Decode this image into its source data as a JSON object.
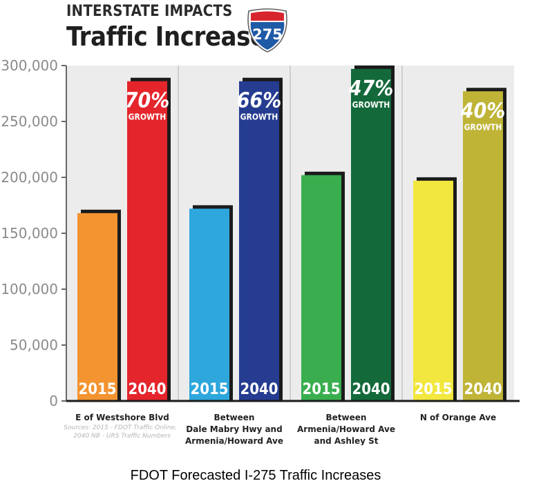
{
  "header": {
    "kicker": "INTERSTATE IMPACTS",
    "title": "Traffic Increases",
    "shield_number": "275"
  },
  "caption": "FDOT Forecasted I-275 Traffic Increases",
  "sources": [
    "Sources: 2015 - FDOT Traffic Online,",
    "2040 NB - URS Traffic Numbers"
  ],
  "chart_data": {
    "type": "bar",
    "ylim": [
      0,
      300000
    ],
    "yticks": [
      0,
      50000,
      100000,
      150000,
      200000,
      250000,
      300000
    ],
    "ytick_labels": [
      "0",
      "50,000",
      "100,000",
      "150,000",
      "200,000",
      "250,000",
      "300,000"
    ],
    "grid": false,
    "bar_year_labels": [
      "2015",
      "2040"
    ],
    "growth_word": "GROWTH",
    "categories": [
      {
        "label": [
          "E of Westshore Blvd"
        ],
        "values": [
          168000,
          286000
        ],
        "growth": "70%",
        "colors": [
          "#f39431",
          "#e4252b"
        ]
      },
      {
        "label": [
          "Between",
          "Dale Mabry Hwy and",
          "Armenia/Howard Ave"
        ],
        "values": [
          172000,
          286000
        ],
        "growth": "66%",
        "colors": [
          "#2ea7dd",
          "#253c90"
        ]
      },
      {
        "label": [
          "Between",
          "Armenia/Howard Ave",
          "and Ashley St"
        ],
        "values": [
          202000,
          297000
        ],
        "growth": "47%",
        "colors": [
          "#3aae4e",
          "#13693a"
        ]
      },
      {
        "label": [
          "N of Orange Ave"
        ],
        "values": [
          197000,
          277000
        ],
        "growth": "40%",
        "colors": [
          "#f2e73e",
          "#bfb436"
        ]
      }
    ]
  }
}
